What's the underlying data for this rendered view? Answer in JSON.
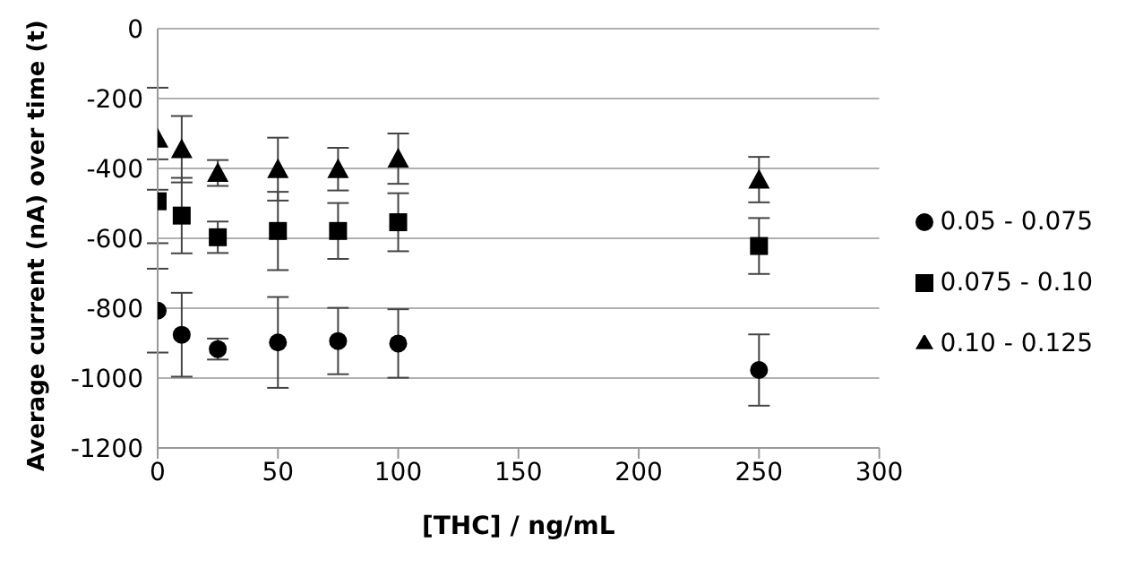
{
  "chart_data": {
    "type": "scatter",
    "xlabel": "[THC] / ng/mL",
    "ylabel": "Average current (nA) over time (t)",
    "x": [
      0,
      10,
      25,
      50,
      75,
      100,
      250
    ],
    "series": [
      {
        "name": "0.05 - 0.075",
        "color": "#000000",
        "marker": "circle",
        "values": [
          -807,
          -876,
          -917,
          -898,
          -894,
          -901,
          -977
        ],
        "errors": [
          120,
          120,
          30,
          130,
          95,
          98,
          102
        ]
      },
      {
        "name": "0.075 - 0.10",
        "color": "#000000",
        "marker": "square",
        "values": [
          -494,
          -535,
          -597,
          -579,
          -579,
          -554,
          -622
        ],
        "errors": [
          120,
          108,
          45,
          112,
          80,
          83,
          80
        ]
      },
      {
        "name": "0.10 - 0.125",
        "color": "#000000",
        "marker": "triangle",
        "values": [
          -315,
          -345,
          -413,
          -402,
          -402,
          -372,
          -432
        ],
        "errors": [
          146,
          95,
          37,
          90,
          61,
          72,
          65
        ]
      }
    ],
    "xlim": [
      0,
      300
    ],
    "xticks": [
      0,
      50,
      100,
      150,
      200,
      250,
      300
    ],
    "ylim": [
      -1200,
      0
    ],
    "yticks": [
      -1200,
      -1000,
      -800,
      -600,
      -400,
      -200,
      0
    ],
    "grid": "y",
    "legend": "right"
  }
}
